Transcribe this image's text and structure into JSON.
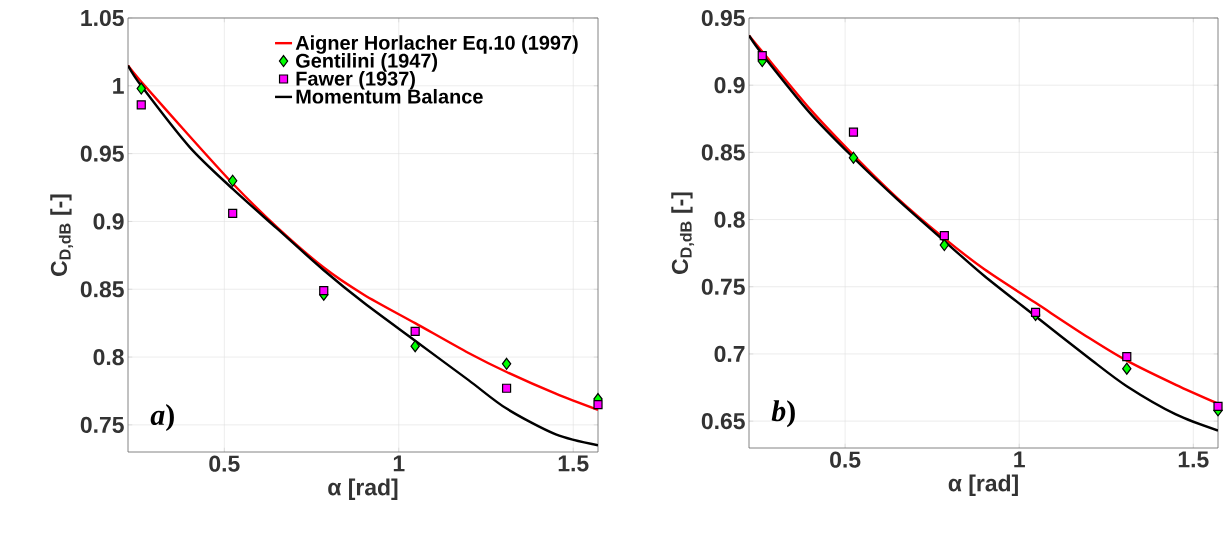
{
  "chart_data": [
    {
      "type": "line",
      "xlabel": "α [rad]",
      "ylabel": "C$_{D,dB}$ [-]",
      "xlim": [
        0.224,
        1.571
      ],
      "ylim": [
        0.73,
        1.05
      ],
      "xticks": [
        0.5,
        1,
        1.5
      ],
      "yticks": [
        0.75,
        0.8,
        0.85,
        0.9,
        0.95,
        1,
        1.05
      ],
      "grid": true,
      "legend": "top right",
      "annotations": [
        "*a*)"
      ],
      "series": [
        {
          "name": "Aigner Horlacher Eq.10 (1997)",
          "color": "#ff0000",
          "x": [
            0.224,
            0.262,
            0.4,
            0.524,
            0.65,
            0.785,
            0.9,
            1.047,
            1.2,
            1.309,
            1.45,
            1.571
          ],
          "values": [
            1.015,
            1.003,
            0.963,
            0.928,
            0.896,
            0.866,
            0.846,
            0.825,
            0.803,
            0.789,
            0.773,
            0.761
          ]
        },
        {
          "name": "Gentilini (1947)",
          "type": "scatter",
          "marker": "diamond",
          "color": "#00ff00",
          "x": [
            0.262,
            0.524,
            0.785,
            1.047,
            1.309,
            1.571
          ],
          "values": [
            0.998,
            0.93,
            0.846,
            0.808,
            0.795,
            0.769
          ]
        },
        {
          "name": "Fawer (1937)",
          "type": "scatter",
          "marker": "square",
          "color": "#ff00ff",
          "x": [
            0.262,
            0.524,
            0.785,
            1.047,
            1.309,
            1.571
          ],
          "values": [
            0.986,
            0.906,
            0.849,
            0.819,
            0.777,
            0.765
          ]
        },
        {
          "name": "Momentum Balance",
          "color": "#000000",
          "x": [
            0.224,
            0.262,
            0.4,
            0.524,
            0.65,
            0.785,
            0.9,
            1.047,
            1.2,
            1.309,
            1.45,
            1.571
          ],
          "values": [
            1.015,
            1.0,
            0.955,
            0.924,
            0.895,
            0.864,
            0.84,
            0.812,
            0.783,
            0.762,
            0.743,
            0.735
          ]
        }
      ]
    },
    {
      "type": "line",
      "xlabel": "α [rad]",
      "ylabel": "C$_{D,dB}$ [-]",
      "xlim": [
        0.224,
        1.571
      ],
      "ylim": [
        0.63,
        0.95
      ],
      "xticks": [
        0.5,
        1,
        1.5
      ],
      "yticks": [
        0.65,
        0.7,
        0.75,
        0.8,
        0.85,
        0.9,
        0.95
      ],
      "grid": true,
      "annotations": [
        "*b*)"
      ],
      "series": [
        {
          "color": "#ff0000",
          "x": [
            0.224,
            0.262,
            0.4,
            0.524,
            0.65,
            0.785,
            0.9,
            1.047,
            1.2,
            1.309,
            1.45,
            1.571
          ],
          "values": [
            0.937,
            0.925,
            0.882,
            0.848,
            0.816,
            0.786,
            0.763,
            0.738,
            0.712,
            0.695,
            0.677,
            0.663
          ]
        },
        {
          "type": "scatter",
          "marker": "diamond",
          "color": "#00ff00",
          "x": [
            0.262,
            0.524,
            0.785,
            1.047,
            1.309,
            1.571
          ],
          "values": [
            0.918,
            0.846,
            0.781,
            0.729,
            0.689,
            0.658
          ]
        },
        {
          "type": "scatter",
          "marker": "square",
          "color": "#ff00ff",
          "x": [
            0.262,
            0.524,
            0.785,
            1.047,
            1.309,
            1.571
          ],
          "values": [
            0.922,
            0.865,
            0.788,
            0.731,
            0.698,
            0.661
          ]
        },
        {
          "color": "#000000",
          "x": [
            0.224,
            0.262,
            0.4,
            0.524,
            0.65,
            0.785,
            0.9,
            1.047,
            1.2,
            1.309,
            1.45,
            1.571
          ],
          "values": [
            0.937,
            0.923,
            0.879,
            0.846,
            0.815,
            0.784,
            0.758,
            0.728,
            0.697,
            0.676,
            0.655,
            0.643
          ]
        }
      ]
    }
  ]
}
